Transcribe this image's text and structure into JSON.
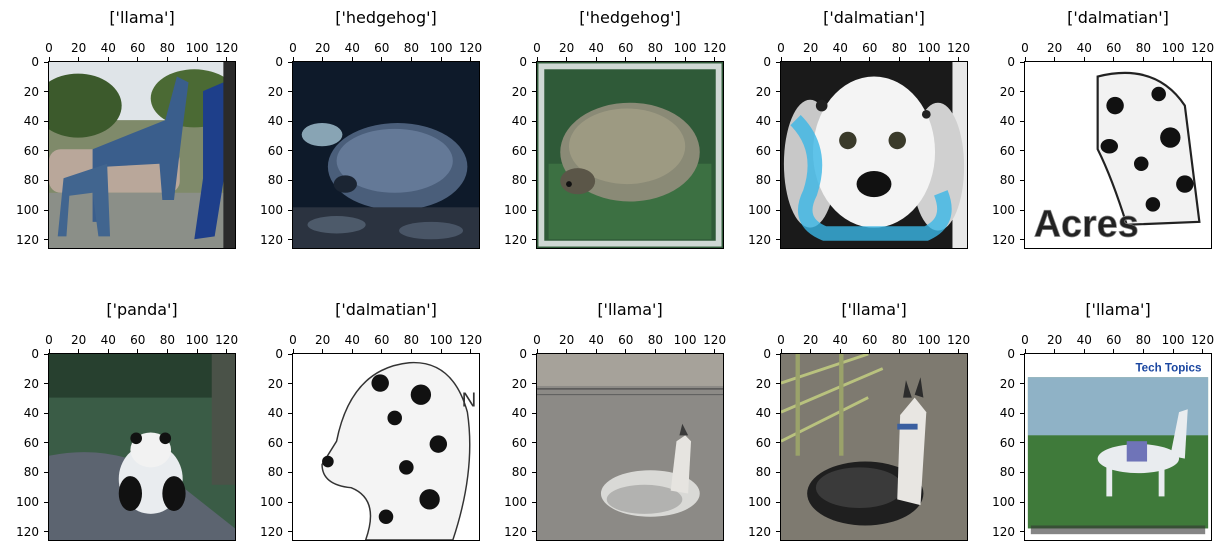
{
  "chart_data": [
    {
      "type": "image",
      "title": "['llama']",
      "xticks": [
        0,
        20,
        40,
        60,
        80,
        100,
        120
      ],
      "yticks": [
        0,
        20,
        40,
        60,
        80,
        100,
        120
      ],
      "xlim": [
        0,
        127
      ],
      "ylim": [
        127,
        0
      ],
      "scene": "llama"
    },
    {
      "type": "image",
      "title": "['hedgehog']",
      "xticks": [
        0,
        20,
        40,
        60,
        80,
        100,
        120
      ],
      "yticks": [
        0,
        20,
        40,
        60,
        80,
        100,
        120
      ],
      "xlim": [
        0,
        127
      ],
      "ylim": [
        127,
        0
      ],
      "scene": "hedgehog-dark"
    },
    {
      "type": "image",
      "title": "['hedgehog']",
      "xticks": [
        0,
        20,
        40,
        60,
        80,
        100,
        120
      ],
      "yticks": [
        0,
        20,
        40,
        60,
        80,
        100,
        120
      ],
      "xlim": [
        0,
        127
      ],
      "ylim": [
        127,
        0
      ],
      "scene": "hedgehog-grass"
    },
    {
      "type": "image",
      "title": "['dalmatian']",
      "xticks": [
        0,
        20,
        40,
        60,
        80,
        100,
        120
      ],
      "yticks": [
        0,
        20,
        40,
        60,
        80,
        100,
        120
      ],
      "xlim": [
        0,
        127
      ],
      "ylim": [
        127,
        0
      ],
      "scene": "dalmatian-puppy"
    },
    {
      "type": "image",
      "title": "['dalmatian']",
      "xticks": [
        0,
        20,
        40,
        60,
        80,
        100,
        120
      ],
      "yticks": [
        0,
        20,
        40,
        60,
        80,
        100,
        120
      ],
      "xlim": [
        0,
        127
      ],
      "ylim": [
        127,
        0
      ],
      "scene": "dalmatian-acres",
      "image_text": "Acres"
    },
    {
      "type": "image",
      "title": "['panda']",
      "xticks": [
        0,
        20,
        40,
        60,
        80,
        100,
        120
      ],
      "yticks": [
        0,
        20,
        40,
        60,
        80,
        100,
        120
      ],
      "xlim": [
        0,
        127
      ],
      "ylim": [
        127,
        0
      ],
      "scene": "panda"
    },
    {
      "type": "image",
      "title": "['dalmatian']",
      "xticks": [
        0,
        20,
        40,
        60,
        80,
        100,
        120
      ],
      "yticks": [
        0,
        20,
        40,
        60,
        80,
        100,
        120
      ],
      "xlim": [
        0,
        127
      ],
      "ylim": [
        127,
        0
      ],
      "scene": "dalmatian-sketch",
      "image_text": "N"
    },
    {
      "type": "image",
      "title": "['llama']",
      "xticks": [
        0,
        20,
        40,
        60,
        80,
        100,
        120
      ],
      "yticks": [
        0,
        20,
        40,
        60,
        80,
        100,
        120
      ],
      "xlim": [
        0,
        127
      ],
      "ylim": [
        127,
        0
      ],
      "scene": "llama-lying"
    },
    {
      "type": "image",
      "title": "['llama']",
      "xticks": [
        0,
        20,
        40,
        60,
        80,
        100,
        120
      ],
      "yticks": [
        0,
        20,
        40,
        60,
        80,
        100,
        120
      ],
      "xlim": [
        0,
        127
      ],
      "ylim": [
        127,
        0
      ],
      "scene": "llama-fence"
    },
    {
      "type": "image",
      "title": "['llama']",
      "xticks": [
        0,
        20,
        40,
        60,
        80,
        100,
        120
      ],
      "yticks": [
        0,
        20,
        40,
        60,
        80,
        100,
        120
      ],
      "xlim": [
        0,
        127
      ],
      "ylim": [
        127,
        0
      ],
      "scene": "llama-techtopics",
      "image_text": "Tech Topics"
    }
  ]
}
